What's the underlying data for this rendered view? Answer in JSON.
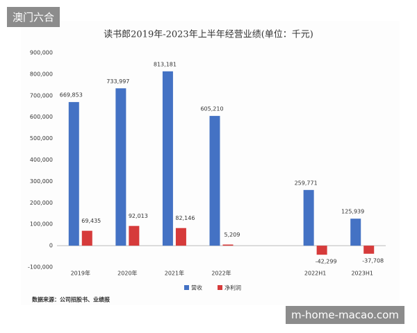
{
  "watermarks": [
    "澳门六合",
    "m-home-macao.com"
  ],
  "chart_data": {
    "type": "bar",
    "title": "读书郎2019年-2023年上半年经营业绩(单位：千元)",
    "categories": [
      "2019年",
      "2020年",
      "2021年",
      "2022年",
      null,
      "2022H1",
      "2023H1"
    ],
    "series": [
      {
        "name": "营收",
        "color": "#4472c4",
        "values": [
          669853,
          733997,
          813181,
          605210,
          null,
          259771,
          125939
        ],
        "value_labels": [
          "669,853",
          "733,997",
          "813,181",
          "605,210",
          null,
          "259,771",
          "125,939"
        ]
      },
      {
        "name": "净利润",
        "color": "#d63b3b",
        "values": [
          69435,
          92013,
          82146,
          5209,
          null,
          -42299,
          -37708
        ],
        "value_labels": [
          "69,435",
          "92,013",
          "82,146",
          "5,209",
          null,
          "-42,299",
          "-37,708"
        ]
      }
    ],
    "ylim": [
      -100000,
      900000
    ],
    "yticks": [
      {
        "value": -100000,
        "label": "-100,000"
      },
      0,
      {
        "value": 100000,
        "label": "100,000"
      },
      {
        "value": 200000,
        "label": "200,000"
      },
      {
        "value": 300000,
        "label": "300,000"
      },
      {
        "value": 400000,
        "label": "400,000"
      },
      {
        "value": 500000,
        "label": "500,000"
      },
      {
        "value": 600000,
        "label": "600,000"
      },
      {
        "value": 700000,
        "label": "700,000"
      },
      {
        "value": 800000,
        "label": "800,000"
      },
      {
        "value": 900000,
        "label": "900,000"
      }
    ],
    "grid": false,
    "legend": "bottom",
    "source": "数据来源：公司招股书、业绩报"
  }
}
